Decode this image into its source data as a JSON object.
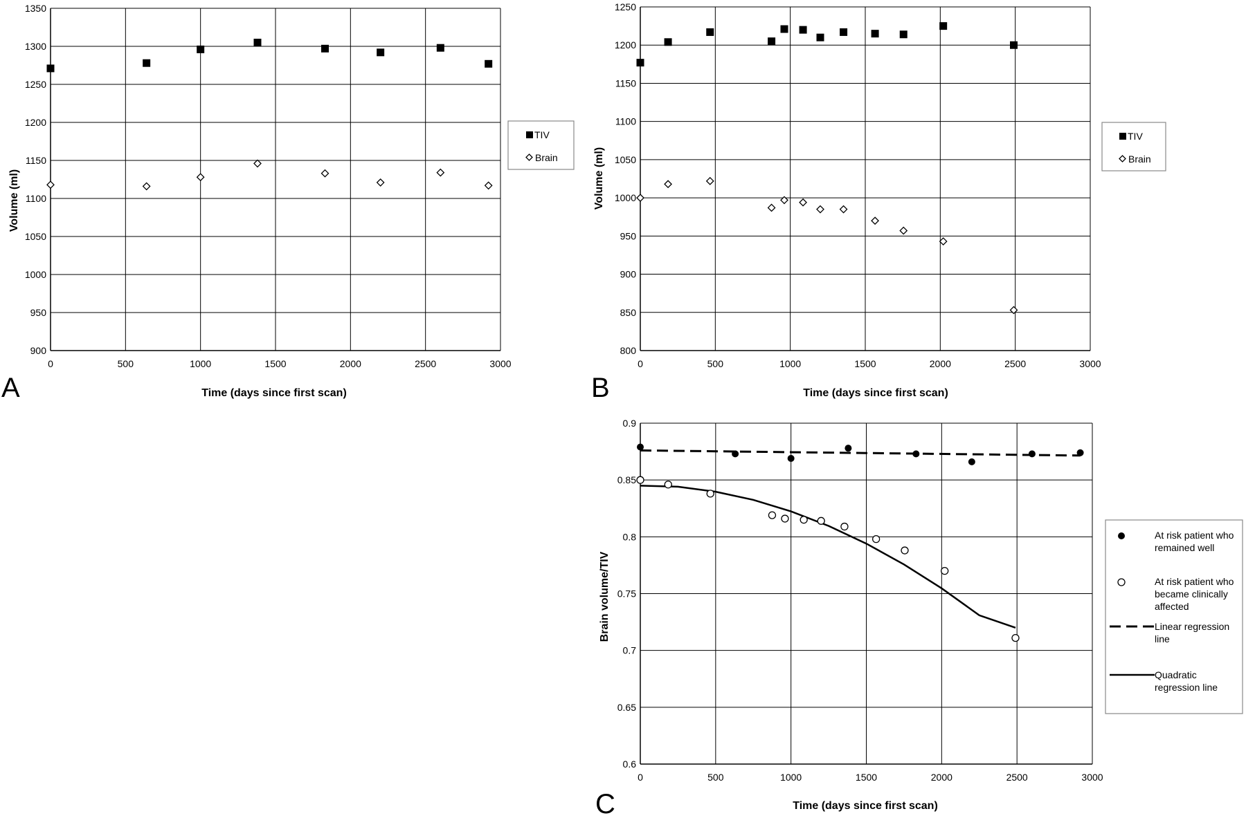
{
  "chart_data": [
    {
      "id": "A",
      "type": "scatter",
      "panel_label": "A",
      "xlabel": "Time (days since first scan)",
      "ylabel": "Volume (ml)",
      "xlim": [
        0,
        3000
      ],
      "ylim": [
        900,
        1350
      ],
      "xticks": [
        0,
        500,
        1000,
        1500,
        2000,
        2500,
        3000
      ],
      "yticks": [
        900,
        950,
        1000,
        1050,
        1100,
        1150,
        1200,
        1250,
        1300,
        1350
      ],
      "grid": true,
      "legend_position": "right",
      "series": [
        {
          "name": "TIV",
          "marker": "filled-square",
          "color": "#000000",
          "x": [
            0,
            640,
            1000,
            1380,
            1830,
            2200,
            2600,
            2920
          ],
          "y": [
            1271,
            1278,
            1296,
            1305,
            1297,
            1292,
            1298,
            1277
          ]
        },
        {
          "name": "Brain",
          "marker": "open-diamond",
          "color": "#000000",
          "x": [
            0,
            640,
            1000,
            1380,
            1830,
            2200,
            2600,
            2920
          ],
          "y": [
            1118,
            1116,
            1128,
            1146,
            1133,
            1121,
            1134,
            1117
          ]
        }
      ]
    },
    {
      "id": "B",
      "type": "scatter",
      "panel_label": "B",
      "xlabel": "Time (days since first scan)",
      "ylabel": "Volume (ml)",
      "xlim": [
        0,
        3000
      ],
      "ylim": [
        800,
        1250
      ],
      "xticks": [
        0,
        500,
        1000,
        1500,
        2000,
        2500,
        3000
      ],
      "yticks": [
        800,
        850,
        900,
        950,
        1000,
        1050,
        1100,
        1150,
        1200,
        1250
      ],
      "grid": true,
      "legend_position": "right",
      "series": [
        {
          "name": "TIV",
          "marker": "filled-square",
          "color": "#000000",
          "x": [
            0,
            185,
            465,
            875,
            960,
            1085,
            1200,
            1355,
            1565,
            1755,
            2020,
            2490
          ],
          "y": [
            1177,
            1204,
            1217,
            1205,
            1221,
            1220,
            1210,
            1217,
            1215,
            1214,
            1225,
            1200
          ]
        },
        {
          "name": "Brain",
          "marker": "open-diamond",
          "color": "#000000",
          "x": [
            0,
            185,
            465,
            875,
            960,
            1085,
            1200,
            1355,
            1565,
            1755,
            2020,
            2490
          ],
          "y": [
            1000,
            1018,
            1022,
            987,
            997,
            994,
            985,
            985,
            970,
            957,
            943,
            853
          ]
        }
      ]
    },
    {
      "id": "C",
      "type": "scatter",
      "panel_label": "C",
      "xlabel": "Time (days since first scan)",
      "ylabel": "Brain volume/TIV",
      "xlim": [
        0,
        3000
      ],
      "ylim": [
        0.6,
        0.9
      ],
      "xticks": [
        0,
        500,
        1000,
        1500,
        2000,
        2500,
        3000
      ],
      "yticks": [
        0.6,
        0.65,
        0.7,
        0.75,
        0.8,
        0.85,
        0.9
      ],
      "grid": true,
      "legend_position": "right",
      "series": [
        {
          "name": "At risk patient who remained well",
          "marker": "filled-circle",
          "color": "#000000",
          "x": [
            0,
            630,
            1000,
            1380,
            1830,
            2200,
            2600,
            2920
          ],
          "y": [
            0.879,
            0.873,
            0.869,
            0.878,
            0.873,
            0.866,
            0.873,
            0.874
          ]
        },
        {
          "name": "At risk patient who became clinically affected",
          "marker": "open-circle",
          "color": "#000000",
          "x": [
            0,
            185,
            465,
            875,
            960,
            1085,
            1200,
            1355,
            1565,
            1755,
            2020,
            2490
          ],
          "y": [
            0.85,
            0.846,
            0.838,
            0.819,
            0.816,
            0.815,
            0.814,
            0.809,
            0.798,
            0.788,
            0.77,
            0.711
          ]
        },
        {
          "name": "Linear regression line",
          "line": "dashed",
          "color": "#000000",
          "x": [
            0,
            2920
          ],
          "y": [
            0.876,
            0.8715
          ]
        },
        {
          "name": "Quadratic regression line",
          "line": "solid",
          "color": "#000000",
          "x": [
            0,
            250,
            500,
            750,
            1000,
            1250,
            1500,
            1750,
            2000,
            2250,
            2490
          ],
          "y": [
            0.845,
            0.8441,
            0.8397,
            0.8325,
            0.8224,
            0.8096,
            0.794,
            0.7757,
            0.7547,
            0.7309,
            0.72
          ]
        }
      ]
    }
  ]
}
